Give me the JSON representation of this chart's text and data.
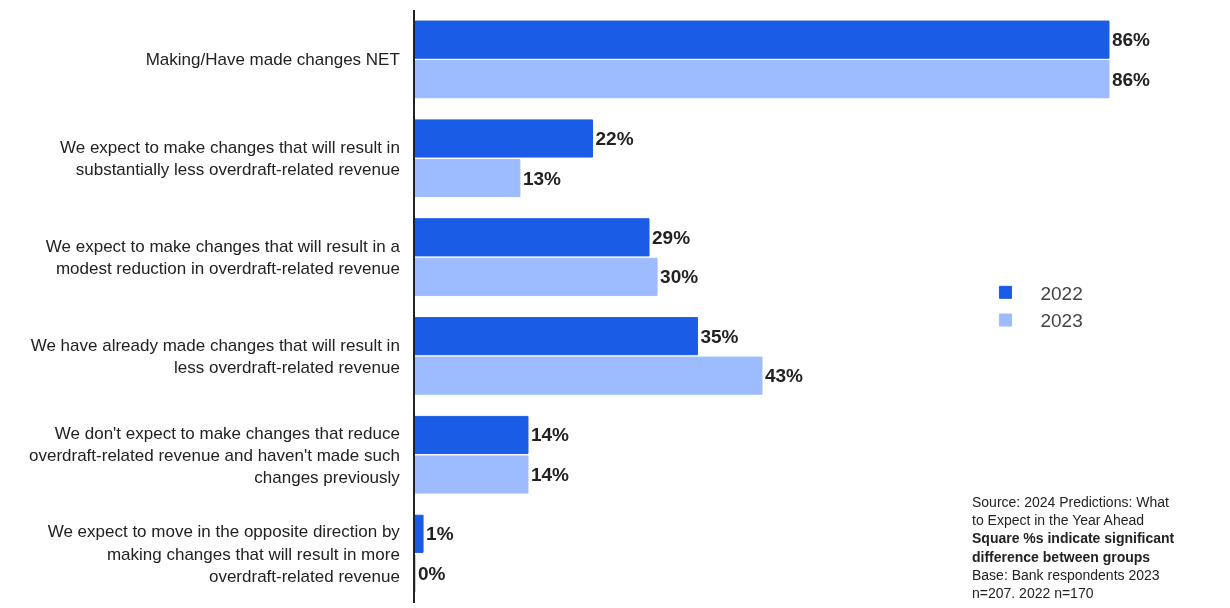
{
  "chart_data": {
    "type": "bar",
    "orientation": "horizontal",
    "categories": [
      "Making/Have made changes NET",
      "We expect to make changes that will result in substantially less overdraft-related revenue",
      "We expect to make changes that will result in a modest reduction in overdraft-related revenue",
      "We have already made changes that will result in less overdraft-related revenue",
      "We don't expect to make changes that reduce overdraft-related revenue and haven't made such changes previously",
      "We expect to move in the opposite direction by making changes that will result in more overdraft-related revenue"
    ],
    "series": [
      {
        "name": "2022",
        "color": "#1a5ce6",
        "values": [
          86,
          22,
          29,
          35,
          14,
          1
        ],
        "value_labels": [
          "86%",
          "22%",
          "29%",
          "35%",
          "14%",
          "1%"
        ]
      },
      {
        "name": "2023",
        "color": "#9dbcff",
        "values": [
          86,
          13,
          30,
          43,
          14,
          0
        ],
        "value_labels": [
          "86%",
          "13%",
          "30%",
          "43%",
          "14%",
          "0%"
        ]
      }
    ],
    "tick_labels": "y",
    "legend": "right",
    "annotations": [
      "Source: 2024 Predictions: What to Expect in the Year Ahead",
      "Square %s indicate significant difference between groups",
      "Base: Bank respondents 2023 n=207. 2022 n=170"
    ]
  }
}
